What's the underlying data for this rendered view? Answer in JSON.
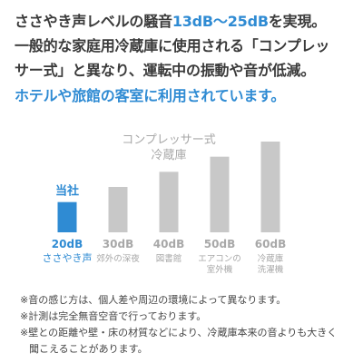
{
  "intro": {
    "line1_a": "ささやき声レベルの騒音",
    "line1_hl": "13dB～25dB",
    "line1_b": "を実現。",
    "line2": "一般的な家庭用冷蔵庫に使用される「コンプレッ",
    "line3": "サー式」と異なり、運転中の振動や音が低減。",
    "line4": "ホテルや旅館の客室に利用されています。"
  },
  "colors": {
    "accent": "#2f8bd3",
    "bar_default": "#c8c8c8",
    "muted_text": "#a8a8a8"
  },
  "chart_data": {
    "type": "bar",
    "title": "コンプレッサー式\n冷蔵庫",
    "title_lines": [
      "コンプレッサー式",
      "冷蔵庫"
    ],
    "highlight_label": "当社",
    "categories": [
      "20dB",
      "30dB",
      "40dB",
      "50dB",
      "60dB"
    ],
    "values": [
      20,
      30,
      40,
      50,
      60
    ],
    "sublabels": [
      [
        "ささやき声"
      ],
      [
        "郊外の深夜"
      ],
      [
        "図書館"
      ],
      [
        "エアコンの",
        "室外機"
      ],
      [
        "冷蔵庫",
        "洗濯機"
      ]
    ],
    "highlight_index": 0,
    "ylim": [
      0,
      60
    ]
  },
  "notes": [
    "※音の感じ方は、個人差や周辺の環境によって異なります。",
    "※計測は完全無音空音で行っております。",
    "※壁との距離や壁・床の材質などにより、冷蔵庫本来の音よりも大きく",
    "聞こえることがあります。"
  ]
}
